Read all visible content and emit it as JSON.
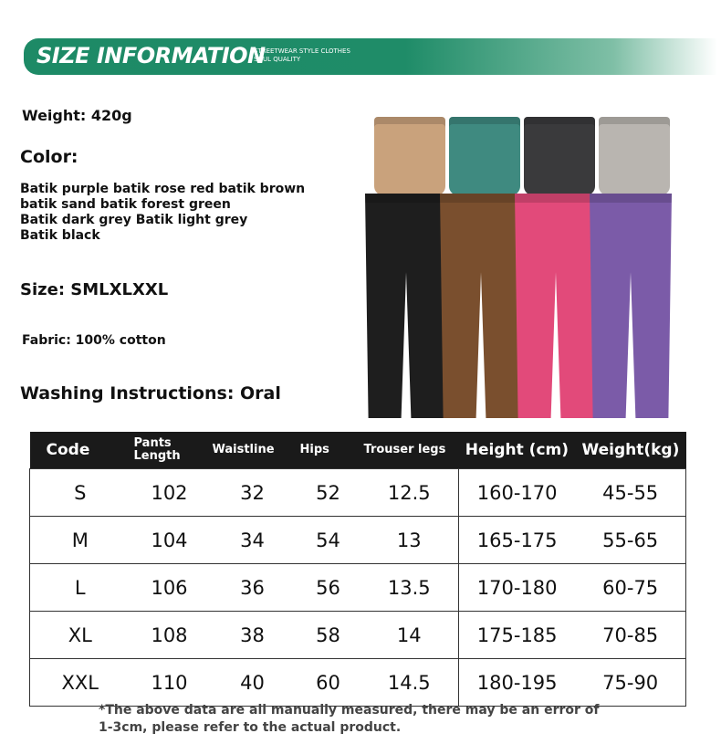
{
  "banner": {
    "title": "SIZE INFORMATION",
    "sub1": "STREETWEAR STYLE CLOTHES",
    "sub2": "SOUL QUALITY"
  },
  "info": {
    "weight": "Weight: 420g",
    "color_label": "Color:",
    "colors_line1": "Batik purple batik rose red batik brown",
    "colors_line2": "batik sand batik forest green",
    "colors_line3": "Batik dark grey Batik light grey",
    "colors_line4": "Batik black",
    "size": "Size: SMLXLXXL",
    "fabric": "Fabric: 100% cotton",
    "washing": "Washing Instructions: Oral"
  },
  "product_colors": {
    "top": [
      "#c9a27c",
      "#3f8a80",
      "#3a3a3c",
      "#b9b5b0"
    ],
    "bottom": [
      "#1e1e1e",
      "#7a4f2e",
      "#e24a7a",
      "#7b5ba8"
    ]
  },
  "table": {
    "headers": [
      "Code",
      "Pants Length",
      "Waistline",
      "Hips",
      "Trouser legs",
      "Height (cm)",
      "Weight(kg)"
    ],
    "rows": [
      [
        "S",
        "102",
        "32",
        "52",
        "12.5",
        "160-170",
        "45-55"
      ],
      [
        "M",
        "104",
        "34",
        "54",
        "13",
        "165-175",
        "55-65"
      ],
      [
        "L",
        "106",
        "36",
        "56",
        "13.5",
        "170-180",
        "60-75"
      ],
      [
        "XL",
        "108",
        "38",
        "58",
        "14",
        "175-185",
        "70-85"
      ],
      [
        "XXL",
        "110",
        "40",
        "60",
        "14.5",
        "180-195",
        "75-90"
      ]
    ]
  },
  "note": "*The above data are all manually measured, there may be an error of 1-3cm, please refer to the actual product."
}
